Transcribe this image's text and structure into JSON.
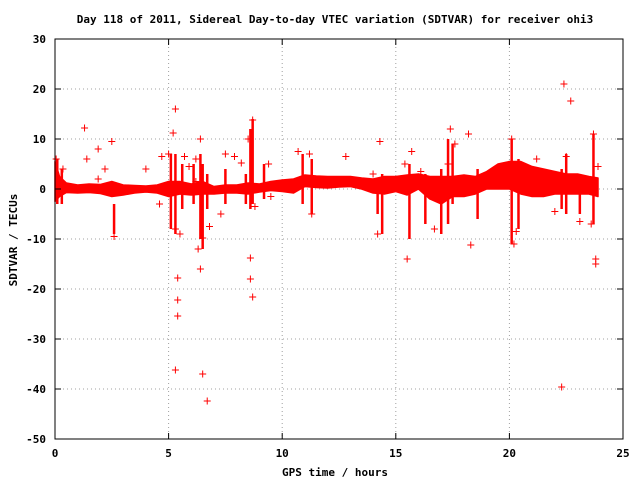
{
  "chart_data": {
    "type": "scatter",
    "title": "Day 118 of 2011, Sidereal Day-to-day VTEC variation (SDTVAR) for receiver ohi3",
    "xlabel": "GPS time / hours",
    "ylabel": "SDTVAR / TECUs",
    "xlim": [
      0,
      25
    ],
    "ylim": [
      -50,
      30
    ],
    "x_ticks": [
      "0",
      "5",
      "10",
      "15",
      "20",
      "25"
    ],
    "y_ticks": [
      "30",
      "20",
      "10",
      "0",
      "-10",
      "-20",
      "-30",
      "-40",
      "-50"
    ],
    "grid": true,
    "marker": "plus",
    "color": "#ff0000",
    "band": [
      [
        0.0,
        -2.5,
        5.5
      ],
      [
        0.2,
        -1.5,
        2.5
      ],
      [
        0.5,
        -0.7,
        1.2
      ],
      [
        1.0,
        -0.8,
        0.8
      ],
      [
        1.5,
        -0.7,
        1.0
      ],
      [
        2.0,
        -0.9,
        0.9
      ],
      [
        2.5,
        -1.5,
        1.5
      ],
      [
        3.0,
        -1.2,
        0.8
      ],
      [
        3.5,
        -0.8,
        0.7
      ],
      [
        4.0,
        -0.6,
        0.6
      ],
      [
        4.5,
        -0.8,
        0.8
      ],
      [
        5.0,
        -1.5,
        1.5
      ],
      [
        5.5,
        -1.0,
        1.5
      ],
      [
        6.0,
        -1.2,
        1.0
      ],
      [
        6.5,
        -1.0,
        1.5
      ],
      [
        7.0,
        -1.0,
        0.5
      ],
      [
        7.5,
        -0.8,
        0.8
      ],
      [
        8.0,
        -0.8,
        0.8
      ],
      [
        8.5,
        -1.0,
        1.2
      ],
      [
        9.0,
        -0.6,
        1.0
      ],
      [
        9.5,
        -0.3,
        1.5
      ],
      [
        10.0,
        -0.5,
        1.8
      ],
      [
        10.5,
        -0.8,
        2.0
      ],
      [
        11.0,
        0.5,
        2.8
      ],
      [
        11.5,
        0.3,
        2.6
      ],
      [
        12.0,
        0.2,
        2.5
      ],
      [
        12.5,
        0.4,
        2.5
      ],
      [
        13.0,
        0.5,
        2.5
      ],
      [
        13.5,
        0.0,
        2.2
      ],
      [
        14.0,
        -0.8,
        2.0
      ],
      [
        14.5,
        -1.0,
        2.5
      ],
      [
        15.0,
        -0.5,
        2.5
      ],
      [
        15.5,
        -1.2,
        2.8
      ],
      [
        16.0,
        0.0,
        3.0
      ],
      [
        16.5,
        -2.0,
        2.5
      ],
      [
        17.0,
        -3.0,
        2.5
      ],
      [
        17.5,
        -1.5,
        2.5
      ],
      [
        18.0,
        -1.5,
        2.8
      ],
      [
        18.5,
        -1.0,
        2.5
      ],
      [
        19.0,
        0.0,
        3.5
      ],
      [
        19.5,
        0.0,
        5.0
      ],
      [
        20.0,
        0.0,
        5.5
      ],
      [
        20.5,
        -1.0,
        5.5
      ],
      [
        21.0,
        -1.5,
        4.5
      ],
      [
        21.5,
        -1.5,
        4.0
      ],
      [
        22.0,
        -1.0,
        3.5
      ],
      [
        22.5,
        -1.0,
        3.0
      ],
      [
        23.0,
        -1.0,
        3.0
      ],
      [
        23.5,
        -1.0,
        2.5
      ],
      [
        23.9,
        -1.5,
        2.2
      ]
    ],
    "spikes": [
      [
        0.1,
        -3,
        6
      ],
      [
        0.3,
        -3,
        4
      ],
      [
        2.6,
        -9,
        -3
      ],
      [
        5.1,
        -8,
        7
      ],
      [
        5.3,
        -9,
        7
      ],
      [
        5.6,
        -4,
        5
      ],
      [
        6.1,
        -3,
        5
      ],
      [
        6.4,
        -10,
        7
      ],
      [
        6.5,
        -12,
        5
      ],
      [
        6.7,
        -4,
        3
      ],
      [
        7.5,
        -3,
        4
      ],
      [
        8.4,
        -3,
        3
      ],
      [
        8.6,
        -4,
        12
      ],
      [
        8.7,
        -3,
        14
      ],
      [
        9.2,
        -2,
        5
      ],
      [
        10.9,
        -3,
        7
      ],
      [
        11.3,
        -5,
        6
      ],
      [
        14.2,
        -5,
        2
      ],
      [
        14.4,
        -9,
        3
      ],
      [
        15.6,
        -10,
        5
      ],
      [
        16.3,
        -7,
        3
      ],
      [
        17.0,
        -9,
        4
      ],
      [
        17.3,
        -7,
        10
      ],
      [
        17.5,
        -3,
        9
      ],
      [
        18.6,
        -6,
        4
      ],
      [
        20.1,
        -11,
        10
      ],
      [
        20.4,
        -8,
        6
      ],
      [
        22.3,
        -4,
        4
      ],
      [
        22.5,
        -5,
        7
      ],
      [
        23.1,
        -5,
        3
      ],
      [
        23.7,
        -7,
        11
      ]
    ],
    "outliers": [
      [
        0.05,
        6
      ],
      [
        0.35,
        4
      ],
      [
        1.3,
        12.2
      ],
      [
        1.4,
        6.0
      ],
      [
        1.9,
        8.0
      ],
      [
        1.9,
        2.0
      ],
      [
        2.5,
        9.5
      ],
      [
        2.6,
        -9.5
      ],
      [
        2.2,
        4.0
      ],
      [
        4.0,
        4.0
      ],
      [
        4.7,
        6.5
      ],
      [
        4.6,
        -3.0
      ],
      [
        5.0,
        7.0
      ],
      [
        5.2,
        11.2
      ],
      [
        5.3,
        16.0
      ],
      [
        5.3,
        -8.0
      ],
      [
        5.4,
        -22.2
      ],
      [
        5.4,
        -25.4
      ],
      [
        5.4,
        -17.8
      ],
      [
        5.3,
        -36.2
      ],
      [
        5.5,
        -9.0
      ],
      [
        5.9,
        4.5
      ],
      [
        5.7,
        6.5
      ],
      [
        6.2,
        6.0
      ],
      [
        6.4,
        10.0
      ],
      [
        6.3,
        -12.0
      ],
      [
        6.4,
        -16.0
      ],
      [
        6.5,
        -37.0
      ],
      [
        6.7,
        -42.4
      ],
      [
        6.5,
        -9.8
      ],
      [
        6.8,
        -7.5
      ],
      [
        6.2,
        1.5
      ],
      [
        7.5,
        7.0
      ],
      [
        7.3,
        -5.0
      ],
      [
        7.9,
        6.5
      ],
      [
        8.2,
        5.2
      ],
      [
        8.5,
        10.0
      ],
      [
        8.6,
        -13.8
      ],
      [
        8.6,
        -18.0
      ],
      [
        8.7,
        -21.6
      ],
      [
        8.7,
        13.8
      ],
      [
        8.8,
        -3.5
      ],
      [
        9.4,
        5.0
      ],
      [
        9.5,
        -1.5
      ],
      [
        10.7,
        7.5
      ],
      [
        11.2,
        7.0
      ],
      [
        11.3,
        -5.0
      ],
      [
        12.8,
        6.5
      ],
      [
        14.3,
        9.5
      ],
      [
        14.2,
        -9.0
      ],
      [
        14.0,
        3.0
      ],
      [
        15.4,
        5.0
      ],
      [
        15.5,
        -14.0
      ],
      [
        15.7,
        7.5
      ],
      [
        16.1,
        3.5
      ],
      [
        16.7,
        -8.0
      ],
      [
        17.4,
        12.0
      ],
      [
        17.3,
        5.0
      ],
      [
        17.6,
        9.0
      ],
      [
        18.2,
        11.0
      ],
      [
        18.3,
        -11.2
      ],
      [
        18.6,
        1.0
      ],
      [
        20.1,
        10.0
      ],
      [
        20.2,
        -11.0
      ],
      [
        20.3,
        -8.5
      ],
      [
        21.2,
        6.0
      ],
      [
        22.0,
        -4.5
      ],
      [
        22.4,
        21.0
      ],
      [
        22.3,
        -39.6
      ],
      [
        22.7,
        17.6
      ],
      [
        22.5,
        6.5
      ],
      [
        23.1,
        -6.5
      ],
      [
        23.7,
        11.0
      ],
      [
        23.8,
        -14.0
      ],
      [
        23.8,
        -15.0
      ],
      [
        23.6,
        -7.0
      ],
      [
        23.9,
        4.5
      ]
    ]
  }
}
